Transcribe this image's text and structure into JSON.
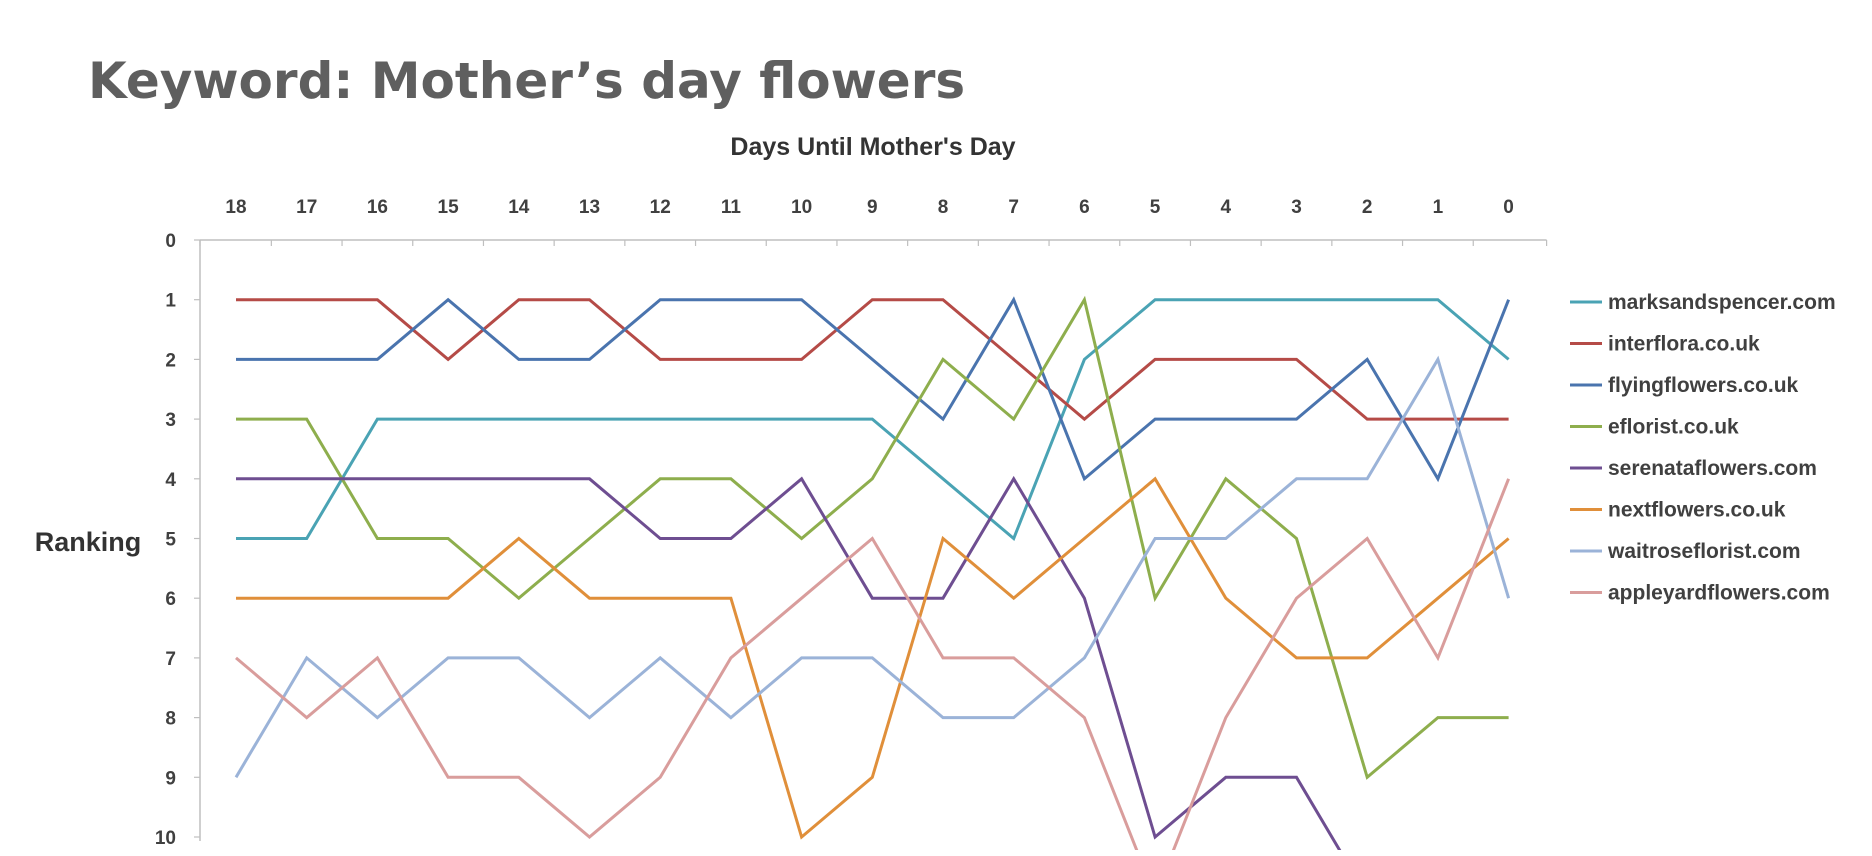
{
  "slide": {
    "title": "Keyword: Mother’s day flowers"
  },
  "chart_data": {
    "type": "line",
    "xlabel": "Days Until Mother's Day",
    "ylabel": "Ranking",
    "x": [
      18,
      17,
      16,
      15,
      14,
      13,
      12,
      11,
      10,
      9,
      8,
      7,
      6,
      5,
      4,
      3,
      2,
      1,
      0
    ],
    "xlim": [
      18,
      0
    ],
    "ylim": [
      0,
      10
    ],
    "y_inverted": true,
    "x_axis_position": "top",
    "y_ticks": [
      0,
      1,
      2,
      3,
      4,
      5,
      6,
      7,
      8,
      9,
      10
    ],
    "grid": false,
    "legend_position": "right",
    "series": [
      {
        "name": "marksandspencer.com",
        "color": "#4aa3b4",
        "values": [
          5,
          5,
          3,
          3,
          3,
          3,
          3,
          3,
          3,
          3,
          4,
          5,
          2,
          1,
          1,
          1,
          1,
          1,
          2
        ]
      },
      {
        "name": "interflora.co.uk",
        "color": "#b54b47",
        "values": [
          1,
          1,
          1,
          2,
          1,
          1,
          2,
          2,
          2,
          1,
          1,
          2,
          3,
          2,
          2,
          2,
          3,
          3,
          3
        ]
      },
      {
        "name": "flyingflowers.co.uk",
        "color": "#4a74ae",
        "values": [
          2,
          2,
          2,
          1,
          2,
          2,
          1,
          1,
          1,
          2,
          3,
          1,
          4,
          3,
          3,
          3,
          2,
          4,
          1
        ]
      },
      {
        "name": "eflorist.co.uk",
        "color": "#8eae4d",
        "values": [
          3,
          3,
          5,
          5,
          6,
          5,
          4,
          4,
          5,
          4,
          2,
          3,
          1,
          6,
          4,
          5,
          9,
          8,
          8
        ]
      },
      {
        "name": "serenataflowers.com",
        "color": "#6e4e91",
        "values": [
          4,
          4,
          4,
          4,
          4,
          4,
          5,
          5,
          4,
          6,
          6,
          4,
          6,
          10,
          9,
          9,
          11,
          null,
          null
        ]
      },
      {
        "name": "nextflowers.co.uk",
        "color": "#e08f3a",
        "values": [
          6,
          6,
          6,
          6,
          5,
          6,
          6,
          6,
          10,
          9,
          5,
          6,
          5,
          4,
          6,
          7,
          7,
          6,
          5
        ]
      },
      {
        "name": "waitroseflorist.com",
        "color": "#9bb3d8",
        "values": [
          9,
          7,
          8,
          7,
          7,
          8,
          7,
          8,
          7,
          7,
          8,
          8,
          7,
          5,
          5,
          4,
          4,
          2,
          6
        ]
      },
      {
        "name": "appleyardflowers.com",
        "color": "#d99d9c",
        "values": [
          7,
          8,
          7,
          9,
          9,
          10,
          9,
          7,
          6,
          5,
          7,
          7,
          8,
          11,
          8,
          6,
          5,
          7,
          4
        ]
      }
    ]
  }
}
